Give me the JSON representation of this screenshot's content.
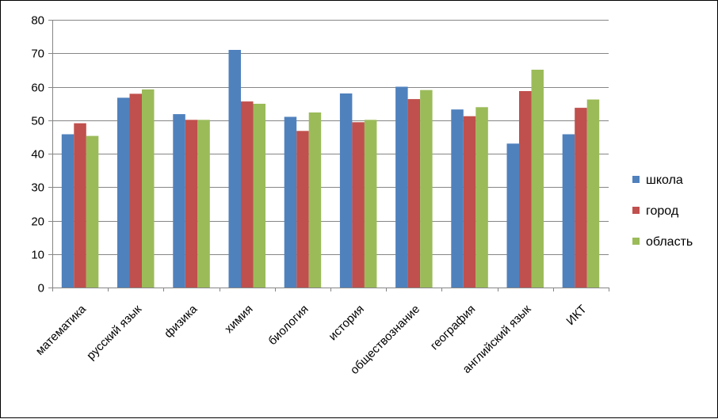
{
  "chart_data": {
    "type": "bar",
    "title": "",
    "xlabel": "",
    "ylabel": "",
    "ylim": [
      0,
      80
    ],
    "yticks": [
      0,
      10,
      20,
      30,
      40,
      50,
      60,
      70,
      80
    ],
    "grid": true,
    "legend_position": "right",
    "categories": [
      "математика",
      "русский язык",
      "физика",
      "химия",
      "биология",
      "история",
      "обществознание",
      "география",
      "английский язык",
      "ИКТ"
    ],
    "series": [
      {
        "name": "школа",
        "color": "#4F81BD",
        "values": [
          45.8,
          56.7,
          51.8,
          71.0,
          51.0,
          58.0,
          60.0,
          53.2,
          43.0,
          45.8
        ]
      },
      {
        "name": "город",
        "color": "#C0504D",
        "values": [
          49.1,
          57.9,
          50.1,
          55.6,
          46.8,
          49.4,
          56.3,
          51.2,
          58.7,
          53.7
        ]
      },
      {
        "name": "область",
        "color": "#9BBB59",
        "values": [
          45.3,
          59.2,
          50.1,
          54.9,
          52.3,
          50.1,
          59.0,
          53.9,
          65.1,
          56.2
        ]
      }
    ]
  }
}
